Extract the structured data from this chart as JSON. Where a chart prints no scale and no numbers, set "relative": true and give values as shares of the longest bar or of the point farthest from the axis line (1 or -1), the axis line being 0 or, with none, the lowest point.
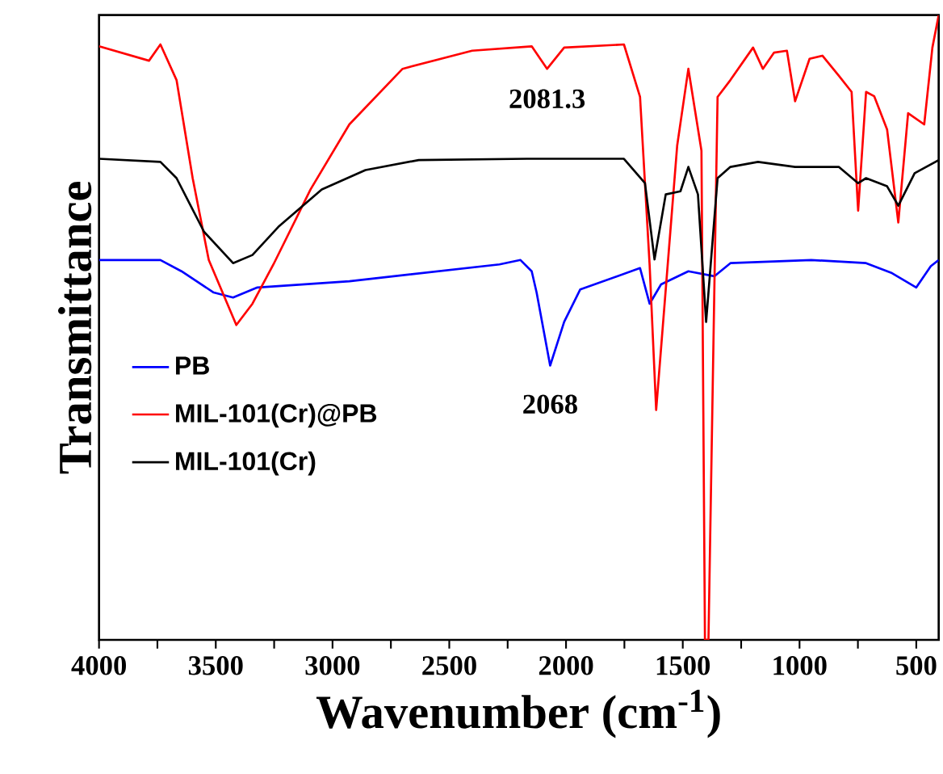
{
  "chart_data": {
    "type": "line",
    "relative": true,
    "xlabel": "Wavenumber (cm$^{-1}$)",
    "ylabel": "Transmittance",
    "xlim": [
      4000,
      404
    ],
    "xticks": [
      4000,
      {
        "value": 3750,
        "label": null
      },
      3500,
      {
        "value": 3250,
        "label": null
      },
      3000,
      {
        "value": 2750,
        "label": null
      },
      2500,
      {
        "value": 2250,
        "label": null
      },
      2000,
      {
        "value": 1750,
        "label": null
      },
      1500,
      {
        "value": 1250,
        "label": null
      },
      1000,
      {
        "value": 750,
        "label": null
      },
      500
    ],
    "legend": "left",
    "marker": "none",
    "line_style": "solid",
    "annotations": [
      {
        "text": "2081.3",
        "x": 2081,
        "y": 0.914
      },
      {
        "text": "2068",
        "x": 2068,
        "y": 0.439
      }
    ],
    "series": [
      {
        "name": "PB",
        "color": "#0000ff",
        "x": [
          4000,
          3737,
          3647,
          3509,
          3426,
          3322,
          2928,
          2285,
          2195,
          2147,
          2126,
          2068,
          2008,
          1939,
          1683,
          1642,
          1593,
          1476,
          1365,
          1296,
          950,
          715,
          604,
          500,
          438,
          404
        ],
        "values": [
          0.608,
          0.608,
          0.59,
          0.556,
          0.548,
          0.564,
          0.574,
          0.601,
          0.608,
          0.59,
          0.556,
          0.439,
          0.509,
          0.561,
          0.595,
          0.538,
          0.569,
          0.59,
          0.582,
          0.603,
          0.608,
          0.603,
          0.587,
          0.564,
          0.598,
          0.608
        ]
      },
      {
        "name": "MIL-101(Cr)@PB",
        "color": "#ff0000",
        "x": [
          4000,
          3786,
          3737,
          3668,
          3599,
          3530,
          3412,
          3343,
          3253,
          3094,
          2928,
          2700,
          2402,
          2147,
          2081,
          2008,
          1752,
          1683,
          1642,
          1614,
          1524,
          1476,
          1420,
          1405,
          1390,
          1351,
          1296,
          1199,
          1157,
          1109,
          1054,
          1019,
          957,
          902,
          832,
          777,
          749,
          715,
          680,
          625,
          577,
          535,
          466,
          431,
          404
        ],
        "values": [
          0.95,
          0.927,
          0.953,
          0.896,
          0.739,
          0.608,
          0.504,
          0.538,
          0.601,
          0.721,
          0.825,
          0.914,
          0.943,
          0.95,
          0.914,
          0.948,
          0.953,
          0.869,
          0.6,
          0.368,
          0.791,
          0.914,
          0.783,
          0,
          0,
          0.869,
          0.896,
          0.948,
          0.914,
          0.94,
          0.943,
          0.862,
          0.93,
          0.935,
          0.903,
          0.877,
          0.687,
          0.877,
          0.87,
          0.817,
          0.668,
          0.843,
          0.825,
          0.948,
          1.0
        ]
      },
      {
        "name": "MIL-101(Cr)",
        "color": "#000000",
        "x": [
          4000,
          3737,
          3668,
          3550,
          3426,
          3343,
          3232,
          3046,
          2859,
          2631,
          2167,
          1752,
          1662,
          1621,
          1573,
          1510,
          1476,
          1435,
          1400,
          1351,
          1296,
          1178,
          1019,
          832,
          749,
          715,
          625,
          577,
          507,
          404
        ],
        "values": [
          0.77,
          0.765,
          0.739,
          0.653,
          0.603,
          0.616,
          0.661,
          0.721,
          0.752,
          0.768,
          0.77,
          0.77,
          0.731,
          0.609,
          0.713,
          0.718,
          0.757,
          0.713,
          0.509,
          0.739,
          0.757,
          0.765,
          0.757,
          0.757,
          0.731,
          0.739,
          0.726,
          0.695,
          0.747,
          0.768
        ]
      }
    ]
  }
}
